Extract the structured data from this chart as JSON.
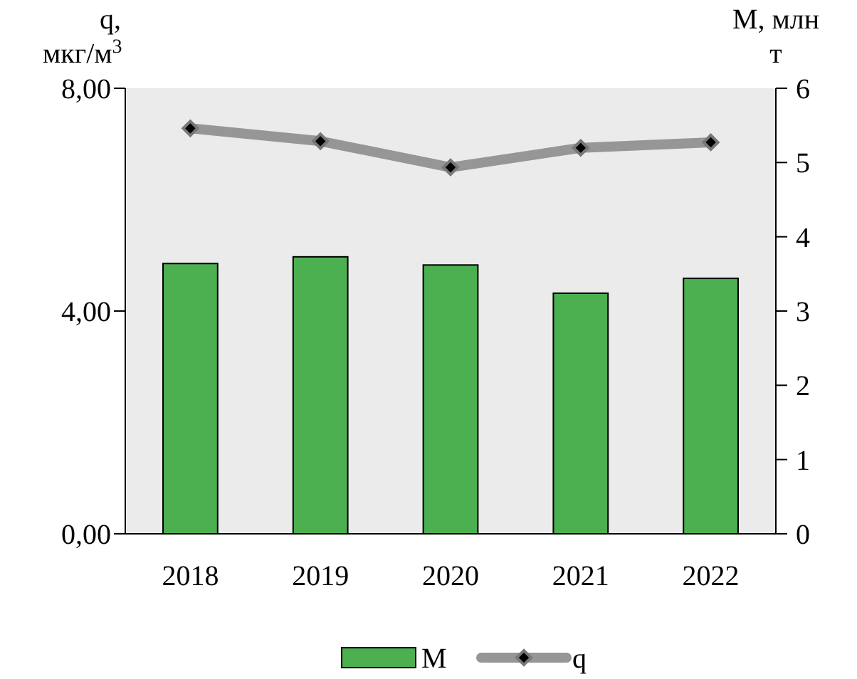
{
  "chart_data": {
    "type": "bar",
    "categories": [
      "2018",
      "2019",
      "2020",
      "2021",
      "2022"
    ],
    "ylabel": "q, мкг/м$^{3}$",
    "y2label": "M, млн т",
    "ylim": [
      0,
      8
    ],
    "yticks": [
      {
        "value": 0,
        "label": "0,00"
      },
      {
        "value": 4,
        "label": "4,00"
      },
      {
        "value": 8,
        "label": "8,00"
      }
    ],
    "y2lim": [
      0,
      6
    ],
    "y2ticks": [
      0,
      1,
      2,
      3,
      4,
      5,
      6
    ],
    "legend": "bottom",
    "grid": false,
    "series": [
      {
        "name": "M",
        "axis": "y2",
        "color": "#4caf50",
        "values": [
          3.64,
          3.73,
          3.62,
          3.24,
          3.44
        ]
      },
      {
        "name": "q",
        "type": "line",
        "color": "#969696",
        "marker": "diamond",
        "values": [
          7.28,
          7.05,
          6.58,
          6.93,
          7.03
        ]
      }
    ]
  }
}
